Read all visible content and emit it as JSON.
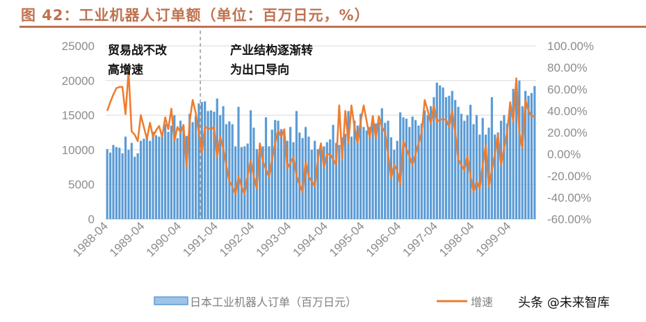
{
  "title": "图 42：工业机器人订单额（单位：百万日元，%）",
  "colors": {
    "title": "#C0714F",
    "bars": "#5B9BD5",
    "line": "#ED7D31",
    "grid": "#d9d9d9",
    "axis_text": "#8c8c8c"
  },
  "watermark": "头条 @未来智库",
  "chart_data": {
    "type": "bar+line",
    "start_month": "1988-04",
    "end_month": "1999-12",
    "frequency": "monthly",
    "x_tick_labels": [
      "1988-04",
      "1989-04",
      "1990-04",
      "1991-04",
      "1992-04",
      "1993-04",
      "1994-04",
      "1995-04",
      "1996-04",
      "1997-04",
      "1998-04",
      "1999-04"
    ],
    "y_left": {
      "min": 0,
      "max": 25000,
      "ticks": [
        "0",
        "5000",
        "10000",
        "15000",
        "20000",
        "25000"
      ]
    },
    "y_right": {
      "min": -60,
      "max": 100,
      "ticks": [
        "-60.00%",
        "-40.00%",
        "-20.00%",
        "0.00%",
        "20.00%",
        "40.00%",
        "60.00%",
        "80.00%",
        "100.00%"
      ]
    },
    "grid": true,
    "legend_position": "bottom",
    "annotations": [
      {
        "text_lines": [
          "贸易战不改",
          "高增速"
        ]
      },
      {
        "text_lines": [
          "产业结构逐渐转",
          "为出口导向"
        ]
      }
    ],
    "divider_month": "1990-11",
    "series": [
      {
        "name": "日本工业机器人订单（百万日元）",
        "type": "bar",
        "axis": "left",
        "values": [
          10100,
          9600,
          10700,
          10400,
          10300,
          9500,
          11900,
          10000,
          11000,
          9000,
          9500,
          11300,
          11600,
          12100,
          11300,
          12600,
          12100,
          11900,
          12300,
          13700,
          12600,
          13500,
          15000,
          11700,
          14200,
          13300,
          12000,
          15200,
          14000,
          14900,
          16700,
          16900,
          17000,
          15600,
          15700,
          15500,
          17400,
          15000,
          16300,
          13700,
          14100,
          13700,
          10500,
          16200,
          10400,
          10500,
          10900,
          15700,
          13200,
          10100,
          9700,
          10500,
          14700,
          10500,
          12900,
          14300,
          14200,
          13000,
          12700,
          11300,
          13300,
          11100,
          15600,
          12500,
          11700,
          13300,
          11900,
          10000,
          11300,
          10100,
          10400,
          10500,
          11100,
          11500,
          13600,
          11000,
          10700,
          11800,
          12300,
          15600,
          11900,
          14200,
          13500,
          15200,
          13300,
          12800,
          13300,
          14900,
          13800,
          14000,
          16000,
          13900,
          14200,
          11800,
          10000,
          11300,
          15400,
          14700,
          14500,
          13300,
          14800,
          14300,
          13500,
          13800,
          15700,
          15000,
          16300,
          17600,
          19700,
          19300,
          19000,
          17600,
          17800,
          18500,
          17200,
          16200,
          15200,
          14200,
          15000,
          16500,
          13700,
          15000,
          12200,
          14600,
          12200,
          13200,
          17600,
          12200,
          12500,
          14200,
          15000,
          13800,
          16600,
          18800,
          19500,
          20000,
          16300,
          18500,
          17800,
          18200,
          19200
        ]
      },
      {
        "name": "增速",
        "type": "line",
        "axis": "right",
        "unit": "%",
        "values": [
          40,
          48,
          55,
          61,
          62,
          62,
          37,
          77,
          21,
          18,
          12,
          36,
          25,
          14,
          29,
          16,
          22,
          26,
          16,
          34,
          23,
          42,
          12,
          25,
          20,
          27,
          -12,
          30,
          50,
          38,
          20,
          1,
          25,
          24,
          23,
          25,
          -3,
          16,
          5,
          -10,
          -25,
          -30,
          -37,
          -21,
          -30,
          -37,
          -20,
          -6,
          -20,
          -32,
          10,
          -7,
          -14,
          -21,
          -5,
          10,
          22,
          16,
          23,
          -13,
          -8,
          -3,
          -20,
          -28,
          -35,
          -7,
          -21,
          -25,
          -30,
          -5,
          10,
          -12,
          0,
          0,
          -5,
          -10,
          45,
          -5,
          40,
          10,
          45,
          25,
          10,
          30,
          45,
          30,
          15,
          35,
          15,
          35,
          25,
          20,
          0,
          -22,
          -10,
          -15,
          -28,
          12,
          5,
          -2,
          -10,
          0,
          10,
          20,
          50,
          40,
          28,
          45,
          30,
          32,
          32,
          32,
          25,
          40,
          20,
          -5,
          -10,
          -15,
          -2,
          -20,
          -35,
          -25,
          -32,
          -10,
          8,
          -30,
          -15,
          0,
          18,
          -10,
          5,
          20,
          48,
          30,
          70,
          20,
          5,
          50,
          40,
          35,
          35
        ]
      }
    ]
  }
}
